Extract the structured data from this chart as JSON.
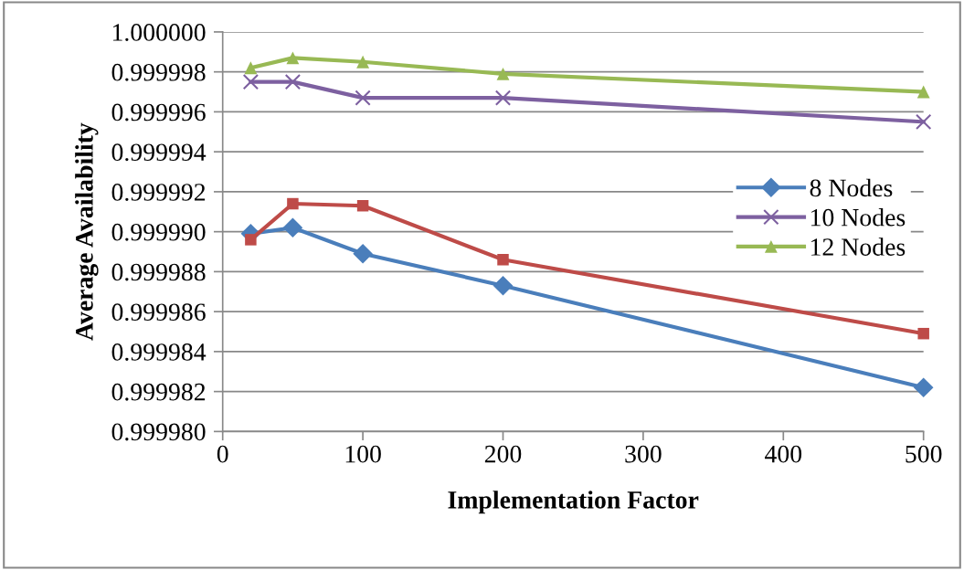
{
  "chart_data": {
    "type": "line",
    "xlabel": "Implementation Factor",
    "ylabel": "Average Availability",
    "x": [
      20,
      50,
      100,
      200,
      500
    ],
    "series": [
      {
        "name": "8 Nodes",
        "color": "#4a7ebb",
        "marker": "diamond",
        "values": [
          0.9999899,
          0.9999902,
          0.9999889,
          0.9999873,
          0.9999822
        ]
      },
      {
        "color": "#be4b48",
        "marker": "square",
        "values": [
          0.9999896,
          0.9999914,
          0.9999913,
          0.9999886,
          0.9999849
        ]
      },
      {
        "name": "10 Nodes",
        "color": "#7d60a0",
        "marker": "cross",
        "values": [
          0.9999975,
          0.9999975,
          0.9999967,
          0.9999967,
          0.9999955
        ]
      },
      {
        "name": "12 Nodes",
        "color": "#98b954",
        "marker": "triangle",
        "values": [
          0.9999982,
          0.9999987,
          0.9999985,
          0.9999979,
          0.999997
        ]
      }
    ],
    "xlim": [
      0,
      500
    ],
    "xticks": [
      0,
      100,
      200,
      300,
      400,
      500
    ],
    "ylim": [
      0.99998,
      1.0
    ],
    "yticks": [
      {
        "value": 0.99998,
        "label": "0.999980"
      },
      {
        "value": 0.999982,
        "label": "0.999982"
      },
      {
        "value": 0.999984,
        "label": "0.999984"
      },
      {
        "value": 0.999986,
        "label": "0.999986"
      },
      {
        "value": 0.999988,
        "label": "0.999988"
      },
      {
        "value": 0.99999,
        "label": "0.999990"
      },
      {
        "value": 0.999992,
        "label": "0.999992"
      },
      {
        "value": 0.999994,
        "label": "0.999994"
      },
      {
        "value": 0.999996,
        "label": "0.999996"
      },
      {
        "value": 0.999998,
        "label": "0.999998"
      },
      {
        "value": 1.0,
        "label": "1.000000"
      }
    ],
    "grid": "y",
    "legend": "right",
    "line_style": "solid"
  }
}
